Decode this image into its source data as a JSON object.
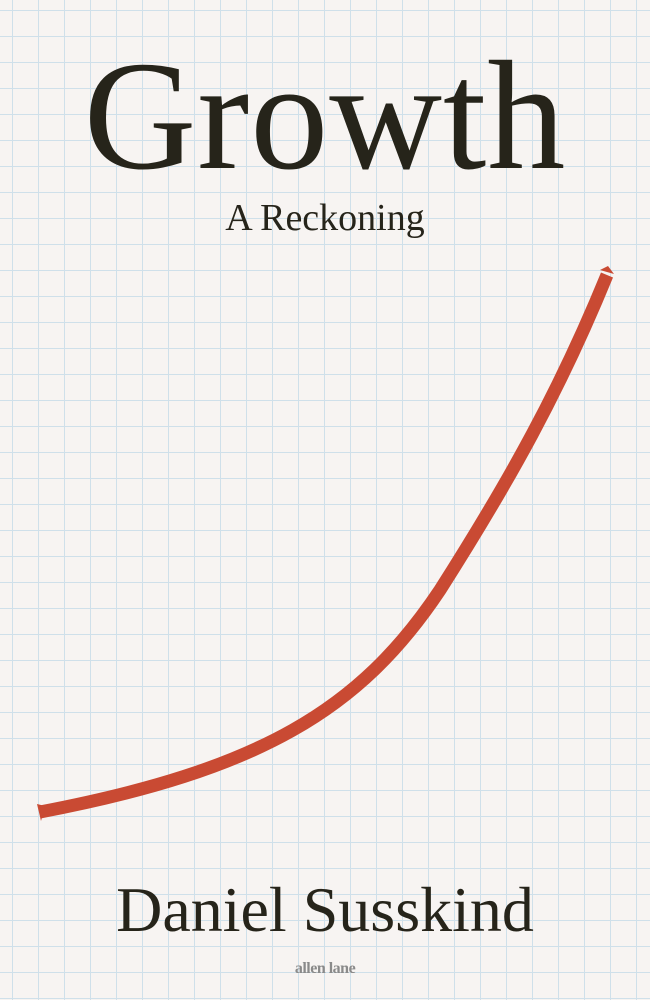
{
  "cover": {
    "title": "Growth",
    "subtitle": "A Reckoning",
    "author": "Daniel Susskind",
    "publisher": "allen lane"
  },
  "colors": {
    "background": "#f7f4f2",
    "grid_line": "#cfe0ea",
    "ink": "#26241a",
    "curve": "#c94a33",
    "publisher_gray": "#8a8a8a"
  }
}
